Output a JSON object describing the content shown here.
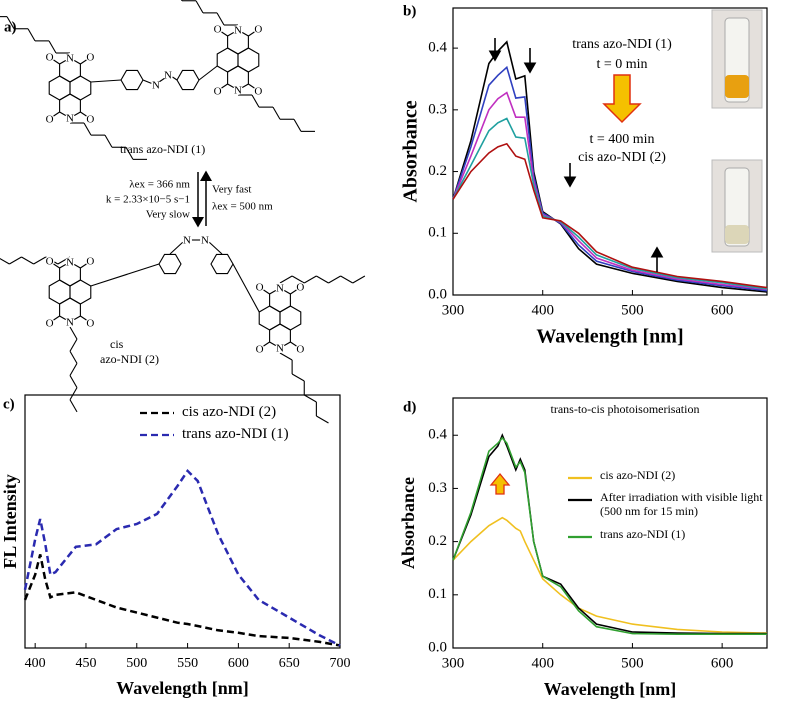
{
  "scheme": {
    "panel_label": "a)",
    "trans_label": "trans azo-NDI (1)",
    "cis_label": [
      "cis",
      "azo-NDI (2)"
    ],
    "conditions_left": [
      "λex = 366 nm",
      "k = 2.33×10−5 s−1",
      "Very slow"
    ],
    "conditions_right": [
      "Very fast",
      "λex = 500 nm"
    ],
    "atoms": [
      "N",
      "O",
      "O",
      "N",
      "O",
      "O",
      "N",
      "O",
      "O",
      "N",
      "O",
      "O",
      "N",
      "O",
      "O",
      "N",
      "O",
      "O",
      "N",
      "O",
      "O",
      "N",
      "O",
      "O",
      "N",
      "N",
      "N",
      "N"
    ]
  },
  "chart_data": [
    {
      "type": "line",
      "panel_label": "b)",
      "x_label": "Wavelength [nm]",
      "y_label": "Absorbance",
      "x": [
        300,
        320,
        340,
        350,
        360,
        370,
        380,
        390,
        400,
        420,
        440,
        460,
        500,
        550,
        600,
        650
      ],
      "series": [
        {
          "color": "#000000",
          "values": [
            0.155,
            0.25,
            0.375,
            0.395,
            0.41,
            0.35,
            0.355,
            0.2,
            0.135,
            0.115,
            0.075,
            0.05,
            0.035,
            0.022,
            0.012,
            0.005
          ]
        },
        {
          "color": "#3040c0",
          "values": [
            0.155,
            0.24,
            0.34,
            0.356,
            0.369,
            0.319,
            0.321,
            0.193,
            0.133,
            0.116,
            0.081,
            0.055,
            0.038,
            0.024,
            0.015,
            0.007
          ]
        },
        {
          "color": "#c030c0",
          "values": [
            0.155,
            0.225,
            0.3,
            0.318,
            0.328,
            0.288,
            0.288,
            0.185,
            0.13,
            0.118,
            0.088,
            0.06,
            0.04,
            0.026,
            0.017,
            0.009
          ]
        },
        {
          "color": "#20a0a0",
          "values": [
            0.155,
            0.21,
            0.266,
            0.279,
            0.286,
            0.256,
            0.254,
            0.178,
            0.128,
            0.119,
            0.094,
            0.065,
            0.043,
            0.028,
            0.02,
            0.01
          ]
        },
        {
          "color": "#b01010",
          "values": [
            0.155,
            0.2,
            0.23,
            0.24,
            0.245,
            0.225,
            0.22,
            0.17,
            0.125,
            0.12,
            0.1,
            0.07,
            0.045,
            0.03,
            0.022,
            0.012
          ]
        }
      ],
      "xlim": [
        300,
        650
      ],
      "xticks": [
        300,
        400,
        500,
        600
      ],
      "ylim": [
        0,
        0.465
      ],
      "yticks": [
        {
          "value": 0,
          "label": "0.0"
        },
        0.1,
        0.2,
        0.3,
        0.4
      ],
      "annotations": [
        "trans azo-NDI (1)",
        "t = 0 min",
        "t = 400 min",
        "cis azo-NDI (2)"
      ]
    },
    {
      "type": "line",
      "panel_label": "c)",
      "x_label": "Wavelength [nm]",
      "y_label": "FL Intensity",
      "line_style": "dashed",
      "x": [
        390,
        395,
        400,
        405,
        410,
        415,
        420,
        440,
        460,
        480,
        500,
        520,
        540,
        550,
        560,
        580,
        600,
        620,
        650,
        680,
        700
      ],
      "series": [
        {
          "name": "cis azo-NDI (2)",
          "color": "#000000",
          "values": [
            0.19,
            0.24,
            0.29,
            0.37,
            0.27,
            0.2,
            0.21,
            0.22,
            0.19,
            0.16,
            0.14,
            0.12,
            0.1,
            0.095,
            0.087,
            0.07,
            0.06,
            0.047,
            0.04,
            0.024,
            0.01
          ]
        },
        {
          "name": "trans azo-NDI (1)",
          "color": "#2a2ab0",
          "values": [
            0.23,
            0.33,
            0.43,
            0.51,
            0.41,
            0.29,
            0.3,
            0.4,
            0.41,
            0.47,
            0.49,
            0.53,
            0.64,
            0.7,
            0.66,
            0.45,
            0.29,
            0.19,
            0.12,
            0.05,
            0.01
          ]
        }
      ],
      "xlim": [
        390,
        700
      ],
      "xticks": [
        400,
        450,
        500,
        550,
        600,
        650,
        700
      ],
      "ylim": [
        0,
        1
      ]
    },
    {
      "type": "line",
      "panel_label": "d)",
      "title": "trans-to-cis photoisomerisation",
      "x_label": "Wavelength [nm]",
      "y_label": "Absorbance",
      "x": [
        300,
        320,
        340,
        350,
        355,
        360,
        370,
        375,
        380,
        390,
        400,
        420,
        440,
        460,
        500,
        550,
        600,
        650
      ],
      "series": [
        {
          "name": "cis azo-NDI (2)",
          "color": "#f0c020",
          "values": [
            0.165,
            0.2,
            0.23,
            0.24,
            0.245,
            0.24,
            0.225,
            0.22,
            0.2,
            0.165,
            0.13,
            0.1,
            0.075,
            0.06,
            0.045,
            0.035,
            0.03,
            0.028
          ]
        },
        {
          "name": "After irradiation with visible light (500 nm for 15 min)",
          "color": "#000000",
          "values": [
            0.165,
            0.25,
            0.36,
            0.38,
            0.4,
            0.38,
            0.335,
            0.355,
            0.335,
            0.2,
            0.135,
            0.12,
            0.075,
            0.045,
            0.03,
            0.028,
            0.027,
            0.027
          ]
        },
        {
          "name": "trans azo-NDI (1)",
          "color": "#30a030",
          "values": [
            0.165,
            0.255,
            0.37,
            0.385,
            0.395,
            0.385,
            0.34,
            0.35,
            0.33,
            0.2,
            0.135,
            0.115,
            0.07,
            0.04,
            0.027,
            0.026,
            0.026,
            0.026
          ]
        }
      ],
      "xlim": [
        300,
        650
      ],
      "xticks": [
        300,
        400,
        500,
        600
      ],
      "ylim": [
        0,
        0.47
      ],
      "yticks": [
        {
          "value": 0,
          "label": "0.0"
        },
        0.1,
        0.2,
        0.3,
        0.4
      ]
    }
  ]
}
